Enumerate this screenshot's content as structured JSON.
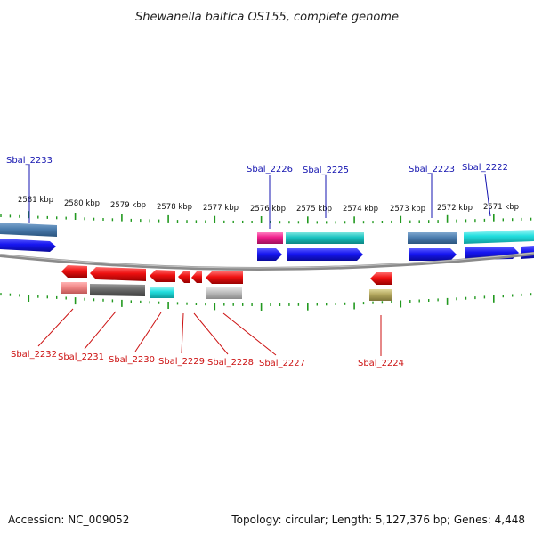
{
  "title": "Shewanella baltica OS155, complete genome",
  "footer": {
    "accession": "Accession: NC_009052",
    "summary": "Topology: circular; Length: 5,127,376 bp; Genes: 4,448"
  },
  "ruler": {
    "labels": [
      "2581 kbp",
      "2580 kbp",
      "2579 kbp",
      "2578 kbp",
      "2577 kbp",
      "2576 kbp",
      "2575 kbp",
      "2574 kbp",
      "2573 kbp",
      "2572 kbp",
      "2571 kbp"
    ]
  },
  "top_gene_labels": [
    "Sbal_2233",
    "Sbal_2226",
    "Sbal_2225",
    "Sbal_2223",
    "Sbal_2222"
  ],
  "bottom_gene_labels": [
    "Sbal_2232",
    "Sbal_2231",
    "Sbal_2230",
    "Sbal_2229",
    "Sbal_2228",
    "Sbal_2227",
    "Sbal_2224"
  ],
  "colors": {
    "forward_gene": "#1a1ae6",
    "reverse_gene": "#e60f0f",
    "backbone": "#808080",
    "tick": "#22991f",
    "top_label": "#1515b0",
    "bottom_label": "#cc1111"
  }
}
